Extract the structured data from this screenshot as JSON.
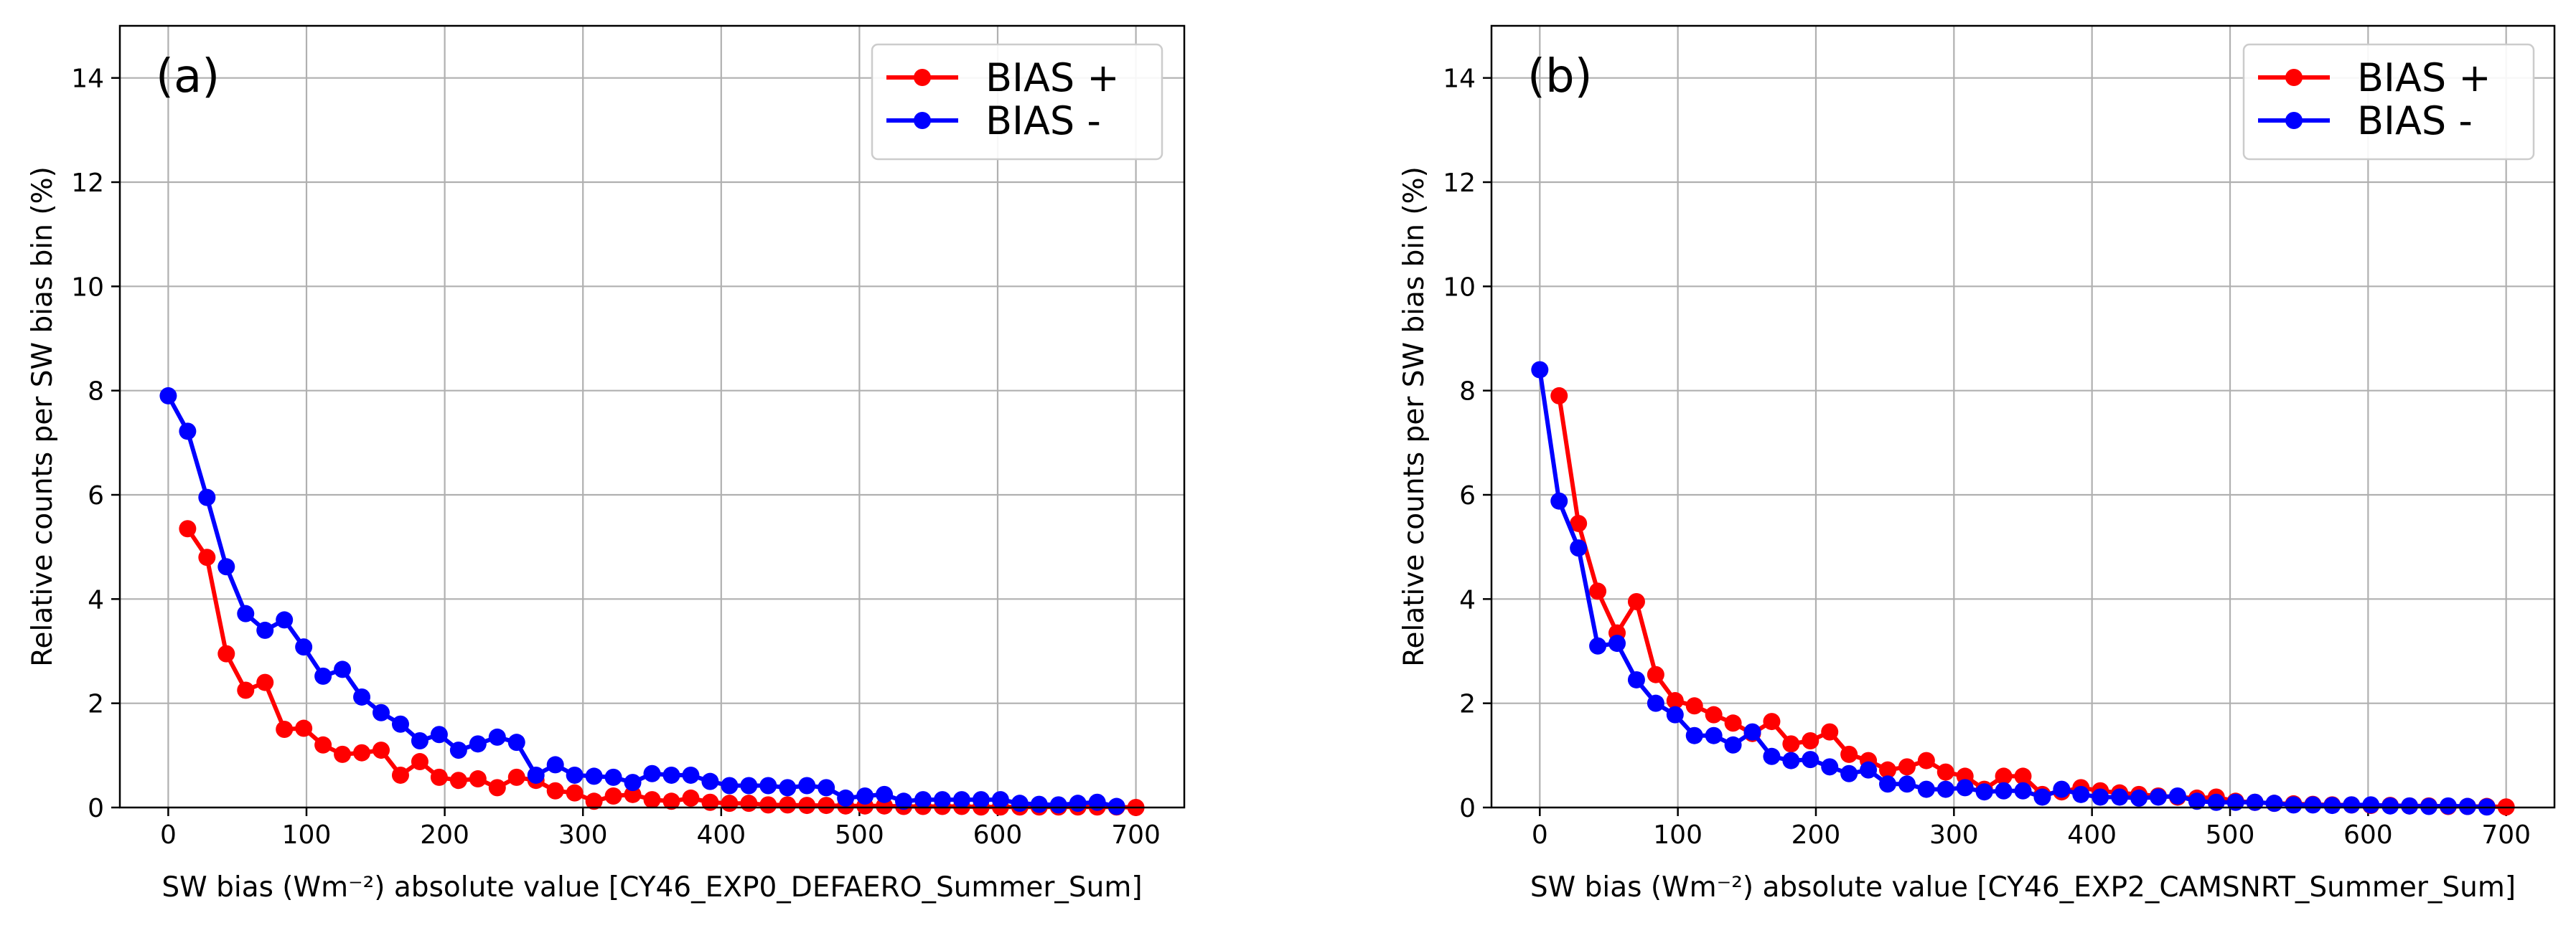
{
  "chart_data": [
    {
      "type": "line",
      "panel_label": "(a)",
      "xlabel": "SW bias (Wm⁻²) absolute value [CY46_EXP0_DEFAERO_Summer_Sum]",
      "ylabel": "Relative counts per SW bias bin (%)",
      "xlim": [
        -35,
        735
      ],
      "ylim": [
        0,
        15
      ],
      "xticks": [
        0,
        100,
        200,
        300,
        400,
        500,
        600,
        700
      ],
      "yticks": [
        0,
        2,
        4,
        6,
        8,
        10,
        12,
        14
      ],
      "grid": true,
      "legend_position": "top-right",
      "series": [
        {
          "name": "BIAS +",
          "color": "#ff0000",
          "x": [
            14,
            28,
            42,
            56,
            70,
            84,
            98,
            112,
            126,
            140,
            154,
            168,
            182,
            196,
            210,
            224,
            238,
            252,
            266,
            280,
            294,
            308,
            322,
            336,
            350,
            364,
            378,
            392,
            406,
            420,
            434,
            448,
            462,
            476,
            490,
            504,
            518,
            532,
            546,
            560,
            574,
            588,
            602,
            616,
            630,
            644,
            658,
            672,
            686,
            700
          ],
          "y": [
            5.35,
            4.8,
            2.95,
            2.25,
            2.4,
            1.5,
            1.52,
            1.2,
            1.02,
            1.05,
            1.1,
            0.62,
            0.88,
            0.58,
            0.52,
            0.55,
            0.38,
            0.58,
            0.52,
            0.32,
            0.28,
            0.12,
            0.22,
            0.25,
            0.15,
            0.12,
            0.18,
            0.1,
            0.08,
            0.08,
            0.05,
            0.05,
            0.04,
            0.04,
            0.03,
            0.03,
            0.03,
            0.02,
            0.02,
            0.02,
            0.02,
            0.01,
            0.01,
            0.01,
            0.01,
            0.01,
            0.01,
            0.01,
            0.01,
            0.0
          ]
        },
        {
          "name": "BIAS -",
          "color": "#0000ff",
          "x": [
            0,
            14,
            28,
            42,
            56,
            70,
            84,
            98,
            112,
            126,
            140,
            154,
            168,
            182,
            196,
            210,
            224,
            238,
            252,
            266,
            280,
            294,
            308,
            322,
            336,
            350,
            364,
            378,
            392,
            406,
            420,
            434,
            448,
            462,
            476,
            490,
            504,
            518,
            532,
            546,
            560,
            574,
            588,
            602,
            616,
            630,
            644,
            658,
            672,
            686
          ],
          "y": [
            7.9,
            7.22,
            5.95,
            4.62,
            3.72,
            3.4,
            3.6,
            3.08,
            2.52,
            2.65,
            2.12,
            1.82,
            1.6,
            1.28,
            1.4,
            1.1,
            1.22,
            1.35,
            1.25,
            0.62,
            0.82,
            0.62,
            0.6,
            0.58,
            0.48,
            0.65,
            0.62,
            0.62,
            0.5,
            0.42,
            0.42,
            0.42,
            0.38,
            0.42,
            0.38,
            0.18,
            0.22,
            0.25,
            0.12,
            0.15,
            0.15,
            0.15,
            0.15,
            0.15,
            0.08,
            0.06,
            0.05,
            0.08,
            0.1,
            0.02
          ]
        }
      ]
    },
    {
      "type": "line",
      "panel_label": "(b)",
      "xlabel": "SW bias (Wm⁻²) absolute value [CY46_EXP2_CAMSNRT_Summer_Sum]",
      "ylabel": "Relative counts per SW bias bin (%)",
      "xlim": [
        -35,
        735
      ],
      "ylim": [
        0,
        15
      ],
      "xticks": [
        0,
        100,
        200,
        300,
        400,
        500,
        600,
        700
      ],
      "yticks": [
        0,
        2,
        4,
        6,
        8,
        10,
        12,
        14
      ],
      "grid": true,
      "legend_position": "top-right",
      "series": [
        {
          "name": "BIAS +",
          "color": "#ff0000",
          "x": [
            14,
            28,
            42,
            56,
            70,
            84,
            98,
            112,
            126,
            140,
            154,
            168,
            182,
            196,
            210,
            224,
            238,
            252,
            266,
            280,
            294,
            308,
            322,
            336,
            350,
            364,
            378,
            392,
            406,
            420,
            434,
            448,
            462,
            476,
            490,
            504,
            518,
            532,
            546,
            560,
            574,
            588,
            602,
            616,
            630,
            644,
            658,
            672,
            686,
            700
          ],
          "y": [
            7.9,
            5.45,
            4.15,
            3.35,
            3.95,
            2.55,
            2.05,
            1.95,
            1.78,
            1.62,
            1.42,
            1.65,
            1.22,
            1.28,
            1.45,
            1.02,
            0.9,
            0.72,
            0.78,
            0.9,
            0.68,
            0.6,
            0.35,
            0.6,
            0.6,
            0.25,
            0.3,
            0.38,
            0.32,
            0.28,
            0.25,
            0.22,
            0.2,
            0.18,
            0.2,
            0.12,
            0.1,
            0.08,
            0.07,
            0.06,
            0.05,
            0.05,
            0.04,
            0.04,
            0.03,
            0.03,
            0.02,
            0.02,
            0.02,
            0.01
          ]
        },
        {
          "name": "BIAS -",
          "color": "#0000ff",
          "x": [
            0,
            14,
            28,
            42,
            56,
            70,
            84,
            98,
            112,
            126,
            140,
            154,
            168,
            182,
            196,
            210,
            224,
            238,
            252,
            266,
            280,
            294,
            308,
            322,
            336,
            350,
            364,
            378,
            392,
            406,
            420,
            434,
            448,
            462,
            476,
            490,
            504,
            518,
            532,
            546,
            560,
            574,
            588,
            602,
            616,
            630,
            644,
            658,
            672,
            686
          ],
          "y": [
            8.4,
            5.88,
            4.98,
            3.1,
            3.15,
            2.45,
            2.0,
            1.78,
            1.38,
            1.38,
            1.2,
            1.45,
            0.98,
            0.9,
            0.92,
            0.78,
            0.65,
            0.72,
            0.45,
            0.45,
            0.35,
            0.35,
            0.38,
            0.3,
            0.32,
            0.32,
            0.2,
            0.35,
            0.25,
            0.2,
            0.2,
            0.18,
            0.2,
            0.22,
            0.12,
            0.1,
            0.1,
            0.1,
            0.08,
            0.05,
            0.05,
            0.04,
            0.05,
            0.05,
            0.03,
            0.03,
            0.02,
            0.03,
            0.02,
            0.01
          ]
        }
      ]
    }
  ]
}
